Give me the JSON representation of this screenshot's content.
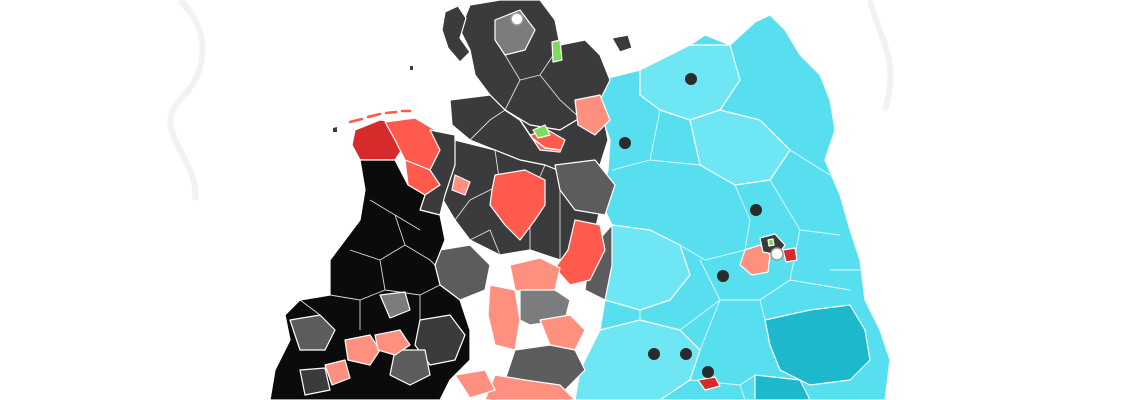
{
  "colors": {
    "background": "#ffffff",
    "black": "#0b0b0b",
    "dark_grey": "#3b3b3d",
    "mid_grey": "#5c5c5e",
    "light_grey": "#7c7c7e",
    "red": "#ff5a4c",
    "salmon": "#ff8f7f",
    "dark_red": "#d72a2a",
    "green": "#7ddc5a",
    "cyan": "#57dff0",
    "cyan_dark": "#1db8cc",
    "cyan_light": "#6fe6f4",
    "marker_dark": "#2b2b2b",
    "marker_light": "#ffffff"
  },
  "map": {
    "region_groups": [
      "north-west-districts",
      "north-districts",
      "west-districts",
      "east-districts",
      "urban-districts"
    ],
    "markers": [
      {
        "name": "north-marker",
        "style": "light"
      },
      {
        "name": "northeast-marker",
        "style": "dark"
      },
      {
        "name": "east-marker-1",
        "style": "dark"
      },
      {
        "name": "east-marker-2",
        "style": "dark"
      },
      {
        "name": "east-marker-3",
        "style": "dark"
      },
      {
        "name": "capital-marker",
        "style": "light"
      },
      {
        "name": "south-marker-1",
        "style": "dark"
      },
      {
        "name": "south-marker-2",
        "style": "dark"
      },
      {
        "name": "south-marker-3",
        "style": "dark"
      }
    ]
  }
}
